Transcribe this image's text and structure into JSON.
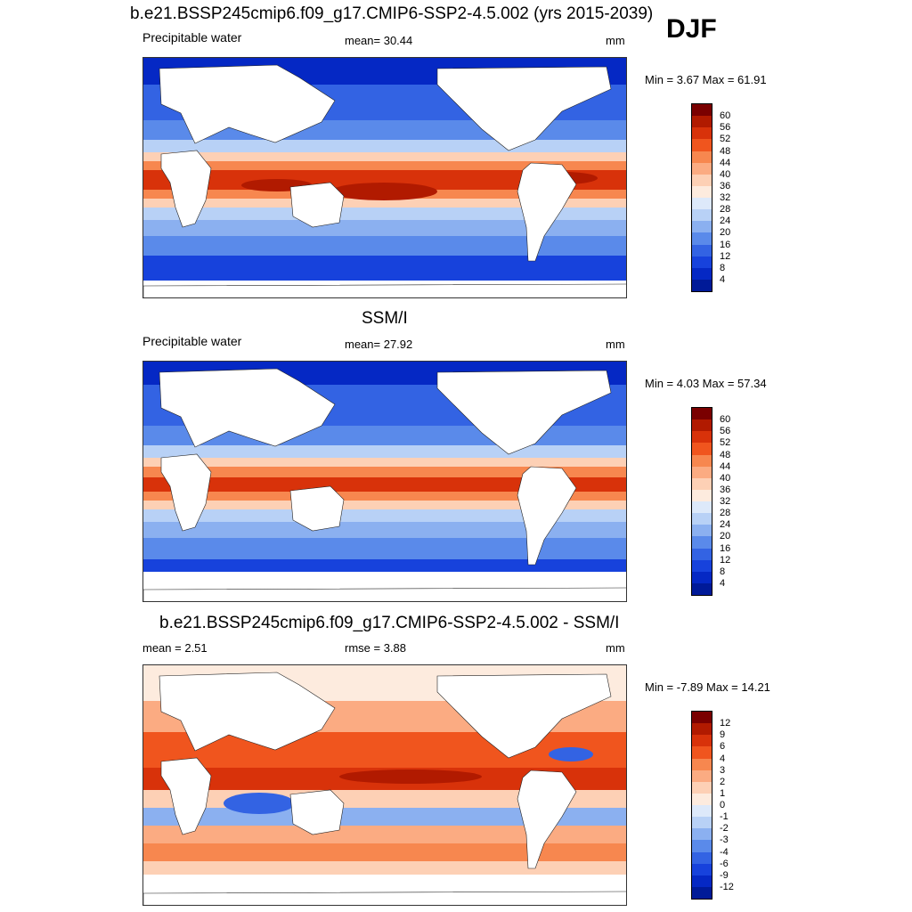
{
  "season": "DJF",
  "panels": [
    {
      "title": "b.e21.BSSP245cmip6.f09_g17.CMIP6-SSP2-4.5.002 (yrs 2015-2039)",
      "left_label": "Precipitable water",
      "center_label": "mean=  30.44",
      "units": "mm",
      "minmax": "Min =   3.67 Max =  61.91",
      "palette": "sequential",
      "colorbar": {
        "colors": [
          "#7a0000",
          "#b11a00",
          "#d8320a",
          "#f0551e",
          "#f7874f",
          "#fbab82",
          "#fdd0b5",
          "#fdebde",
          "#dde9fa",
          "#b8d1f6",
          "#8bb0f0",
          "#5a8aea",
          "#3363e3",
          "#1742dc",
          "#0528c4",
          "#001a98"
        ],
        "labels": [
          "60",
          "56",
          "52",
          "48",
          "44",
          "40",
          "36",
          "32",
          "28",
          "24",
          "20",
          "16",
          "12",
          "8",
          "4"
        ]
      }
    },
    {
      "title": "SSM/I",
      "left_label": "Precipitable water",
      "center_label": "mean=  27.92",
      "units": "mm",
      "minmax": "Min =   4.03 Max =  57.34",
      "palette": "sequential",
      "colorbar": {
        "colors": [
          "#7a0000",
          "#b11a00",
          "#d8320a",
          "#f0551e",
          "#f7874f",
          "#fbab82",
          "#fdd0b5",
          "#fdebde",
          "#dde9fa",
          "#b8d1f6",
          "#8bb0f0",
          "#5a8aea",
          "#3363e3",
          "#1742dc",
          "#0528c4",
          "#001a98"
        ],
        "labels": [
          "60",
          "56",
          "52",
          "48",
          "44",
          "40",
          "36",
          "32",
          "28",
          "24",
          "20",
          "16",
          "12",
          "8",
          "4"
        ]
      }
    },
    {
      "title": "b.e21.BSSP245cmip6.f09_g17.CMIP6-SSP2-4.5.002 - SSM/I",
      "left_label": "mean =   2.51",
      "center_label": "rmse =   3.88",
      "units": "mm",
      "minmax": "Min =  -7.89 Max =  14.21",
      "palette": "diverging",
      "colorbar": {
        "colors": [
          "#7a0000",
          "#b11a00",
          "#d8320a",
          "#f0551e",
          "#f7874f",
          "#fbab82",
          "#fdd0b5",
          "#fdebde",
          "#dde9fa",
          "#b8d1f6",
          "#8bb0f0",
          "#5a8aea",
          "#3363e3",
          "#1742dc",
          "#0528c4",
          "#001a98"
        ],
        "labels": [
          "12",
          "9",
          "6",
          "4",
          "3",
          "2",
          "1",
          "0",
          "-1",
          "-2",
          "-3",
          "-4",
          "-6",
          "-9",
          "-12"
        ]
      }
    }
  ]
}
